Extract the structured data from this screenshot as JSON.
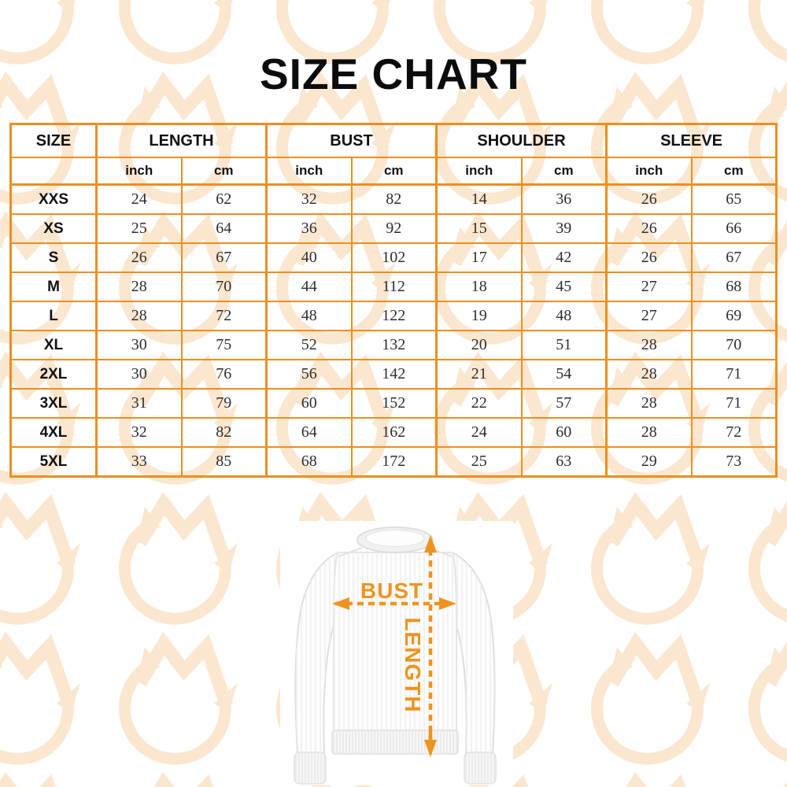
{
  "page": {
    "title": "SIZE CHART"
  },
  "colors": {
    "table_border": "#EE8E1E",
    "accent_orange": "#EF931F",
    "watermark": "#FBE7CF",
    "title_text": "#0C0C0C",
    "value_text": "#2E2E2E",
    "label_text": "#111111",
    "photo_background": "#FFFFFF"
  },
  "size_table": {
    "header_groups": [
      {
        "label": "SIZE",
        "span": 1
      },
      {
        "label": "LENGTH",
        "span": 2
      },
      {
        "label": "BUST",
        "span": 2
      },
      {
        "label": "SHOULDER",
        "span": 2
      },
      {
        "label": "SLEEVE",
        "span": 2
      }
    ],
    "unit_row": [
      "",
      "inch",
      "cm",
      "inch",
      "cm",
      "inch",
      "cm",
      "inch",
      "cm"
    ],
    "rows": [
      {
        "size": "XXS",
        "values": [
          "24",
          "62",
          "32",
          "82",
          "14",
          "36",
          "26",
          "65"
        ]
      },
      {
        "size": "XS",
        "values": [
          "25",
          "64",
          "36",
          "92",
          "15",
          "39",
          "26",
          "66"
        ]
      },
      {
        "size": "S",
        "values": [
          "26",
          "67",
          "40",
          "102",
          "17",
          "42",
          "26",
          "67"
        ]
      },
      {
        "size": "M",
        "values": [
          "28",
          "70",
          "44",
          "112",
          "18",
          "45",
          "27",
          "68"
        ]
      },
      {
        "size": "L",
        "values": [
          "28",
          "72",
          "48",
          "122",
          "19",
          "48",
          "27",
          "69"
        ]
      },
      {
        "size": "XL",
        "values": [
          "30",
          "75",
          "52",
          "132",
          "20",
          "51",
          "28",
          "70"
        ]
      },
      {
        "size": "2XL",
        "values": [
          "30",
          "76",
          "56",
          "142",
          "21",
          "54",
          "28",
          "71"
        ]
      },
      {
        "size": "3XL",
        "values": [
          "31",
          "79",
          "60",
          "152",
          "22",
          "57",
          "28",
          "71"
        ]
      },
      {
        "size": "4XL",
        "values": [
          "32",
          "82",
          "64",
          "162",
          "24",
          "60",
          "28",
          "72"
        ]
      },
      {
        "size": "5XL",
        "values": [
          "33",
          "85",
          "68",
          "172",
          "25",
          "63",
          "29",
          "73"
        ]
      }
    ]
  },
  "diagram": {
    "bust_label": "BUST",
    "length_label": "LENGTH"
  }
}
